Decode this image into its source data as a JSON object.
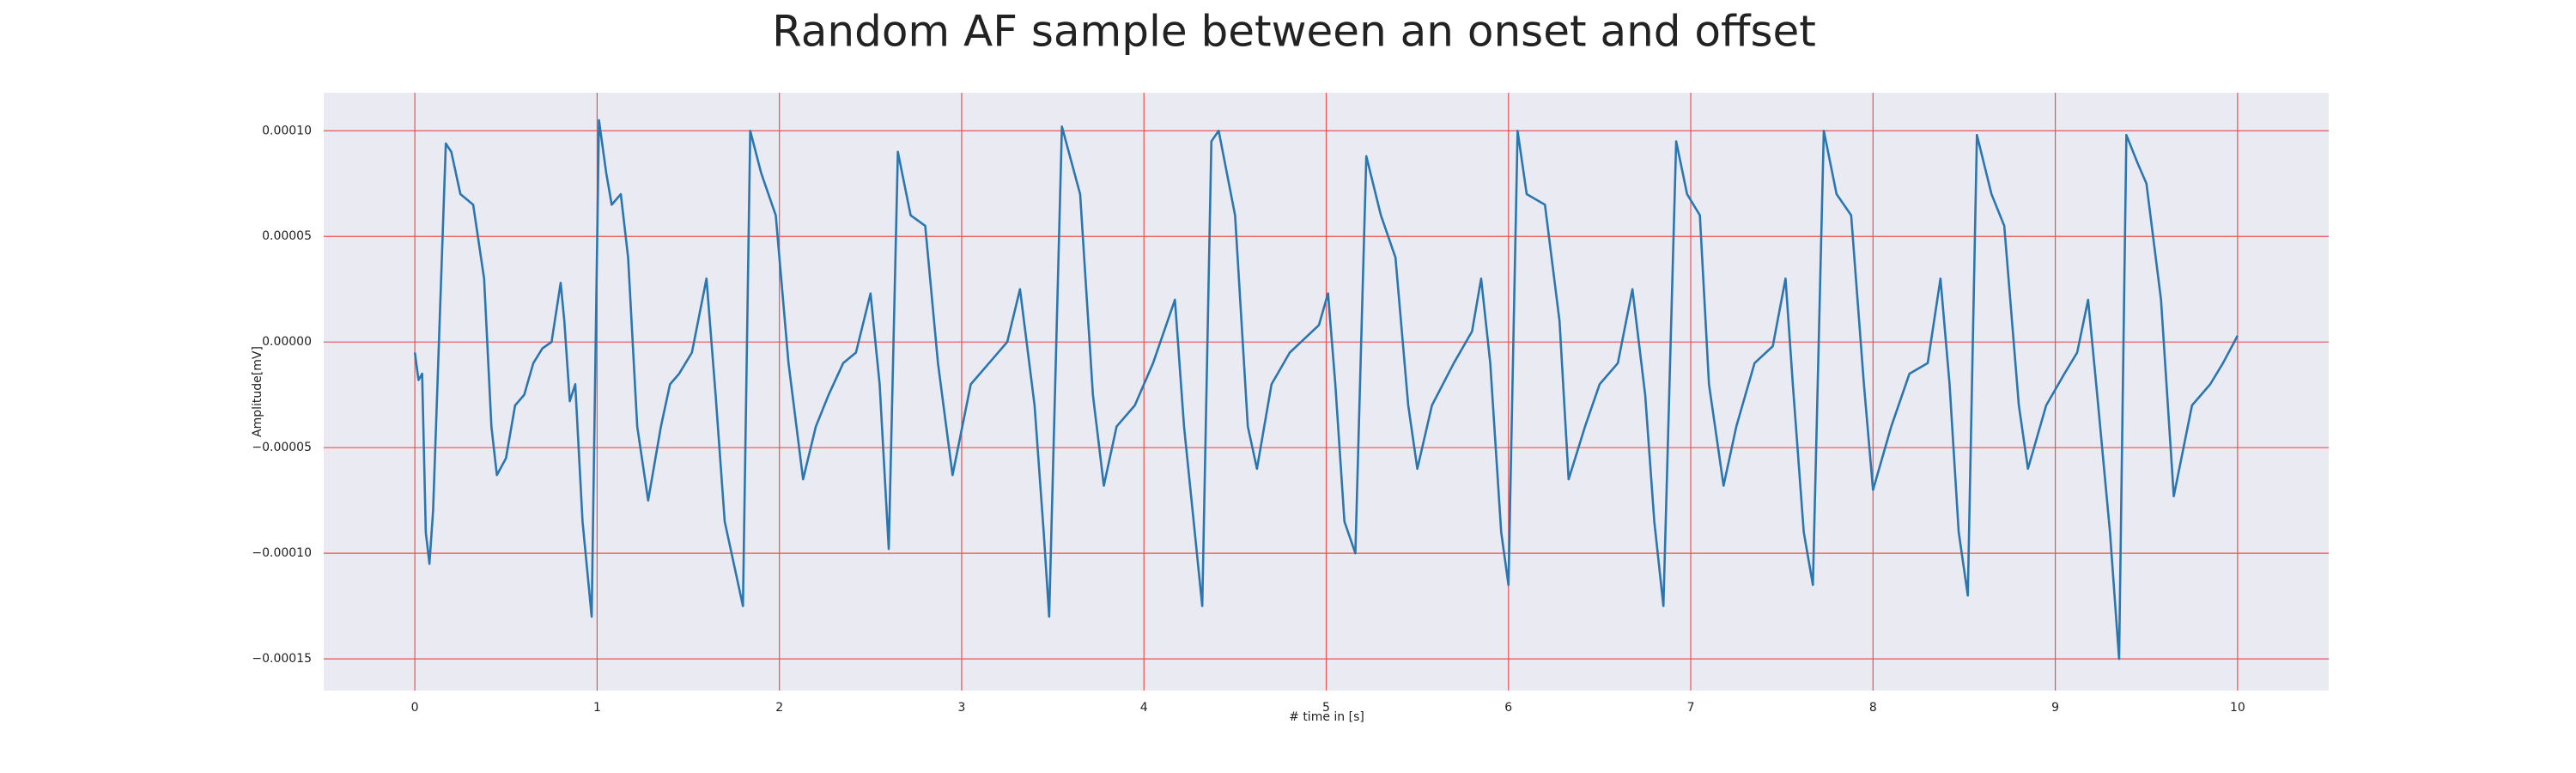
{
  "chart_data": {
    "type": "line",
    "title": "Random AF sample between an onset and offset",
    "xlabel": "# time in [s]",
    "ylabel": "Amplitude[mV]",
    "xlim": [
      -0.5,
      10.5
    ],
    "ylim": [
      -0.000165,
      0.000118
    ],
    "xticks": [
      0,
      1,
      2,
      3,
      4,
      5,
      6,
      7,
      8,
      9,
      10
    ],
    "yticks": [
      {
        "value": -0.00015,
        "label": "−0.00015"
      },
      {
        "value": -0.0001,
        "label": "−0.00010"
      },
      {
        "value": -5e-05,
        "label": "−0.00005"
      },
      {
        "value": 0,
        "label": "0.00000"
      },
      {
        "value": 5e-05,
        "label": "0.00005"
      },
      {
        "value": 0.0001,
        "label": "0.00010"
      }
    ],
    "grid": true,
    "grid_color": "#f05050",
    "background": "#eaeaf2",
    "x": [
      0,
      0.02,
      0.04,
      0.06,
      0.08,
      0.1,
      0.17,
      0.2,
      0.25,
      0.32,
      0.38,
      0.42,
      0.45,
      0.5,
      0.55,
      0.6,
      0.65,
      0.7,
      0.75,
      0.8,
      0.82,
      0.85,
      0.88,
      0.92,
      0.97,
      1.01,
      1.05,
      1.08,
      1.13,
      1.17,
      1.22,
      1.28,
      1.35,
      1.4,
      1.45,
      1.52,
      1.6,
      1.65,
      1.7,
      1.8,
      1.84,
      1.9,
      1.98,
      2.05,
      2.13,
      2.2,
      2.27,
      2.35,
      2.42,
      2.5,
      2.55,
      2.6,
      2.65,
      2.72,
      2.8,
      2.87,
      2.95,
      3.05,
      3.15,
      3.25,
      3.32,
      3.4,
      3.45,
      3.48,
      3.55,
      3.65,
      3.72,
      3.78,
      3.85,
      3.95,
      4.05,
      4.17,
      4.22,
      4.32,
      4.37,
      4.41,
      4.5,
      4.57,
      4.62,
      4.7,
      4.8,
      4.96,
      5.01,
      5.05,
      5.1,
      5.16,
      5.22,
      5.3,
      5.38,
      5.45,
      5.5,
      5.58,
      5.7,
      5.8,
      5.85,
      5.9,
      5.96,
      6.0,
      6.05,
      6.1,
      6.2,
      6.28,
      6.33,
      6.42,
      6.5,
      6.6,
      6.68,
      6.75,
      6.8,
      6.85,
      6.92,
      6.98,
      7.05,
      7.1,
      7.18,
      7.25,
      7.35,
      7.45,
      7.52,
      7.56,
      7.62,
      7.67,
      7.73,
      7.8,
      7.88,
      7.95,
      8.0,
      8.1,
      8.2,
      8.3,
      8.37,
      8.42,
      8.47,
      8.52,
      8.57,
      8.65,
      8.72,
      8.8,
      8.85,
      8.95,
      9.05,
      9.12,
      9.18,
      9.23,
      9.3,
      9.35,
      9.39,
      9.45,
      9.5,
      9.58,
      9.65,
      9.75,
      9.85,
      9.92,
      10.0
    ],
    "series": [
      {
        "color": "#2a76b0",
        "values": [
          -5e-06,
          -1.8e-05,
          -1.5e-05,
          -9e-05,
          -0.000105,
          -8e-05,
          9.4e-05,
          9e-05,
          7e-05,
          6.5e-05,
          3e-05,
          -4e-05,
          -6.3e-05,
          -5.5e-05,
          -3e-05,
          -2.5e-05,
          -1e-05,
          -3e-06,
          0,
          2.8e-05,
          1e-05,
          -2.8e-05,
          -2e-05,
          -8.5e-05,
          -0.00013,
          0.000105,
          8e-05,
          6.5e-05,
          7e-05,
          4e-05,
          -4e-05,
          -7.5e-05,
          -4e-05,
          -2e-05,
          -1.5e-05,
          -5e-06,
          3e-05,
          -2.5e-05,
          -8.5e-05,
          -0.000125,
          0.0001,
          8e-05,
          6e-05,
          -1e-05,
          -6.5e-05,
          -4e-05,
          -2.5e-05,
          -1e-05,
          -5e-06,
          2.3e-05,
          -2e-05,
          -9.8e-05,
          9e-05,
          6e-05,
          5.5e-05,
          -1e-05,
          -6.3e-05,
          -2e-05,
          -1e-05,
          0,
          2.5e-05,
          -3e-05,
          -9e-05,
          -0.00013,
          0.000102,
          7e-05,
          -2.5e-05,
          -6.8e-05,
          -4e-05,
          -3e-05,
          -1e-05,
          2e-05,
          -4e-05,
          -0.000125,
          9.5e-05,
          0.0001,
          6e-05,
          -4e-05,
          -6e-05,
          -2e-05,
          -5e-06,
          8e-06,
          2.3e-05,
          -2e-05,
          -8.5e-05,
          -0.0001,
          8.8e-05,
          6e-05,
          4e-05,
          -3e-05,
          -6e-05,
          -3e-05,
          -1e-05,
          5e-06,
          3e-05,
          -1e-05,
          -9e-05,
          -0.000115,
          0.0001,
          7e-05,
          6.5e-05,
          1e-05,
          -6.5e-05,
          -4e-05,
          -2e-05,
          -1e-05,
          2.5e-05,
          -2.5e-05,
          -8.5e-05,
          -0.000125,
          9.5e-05,
          7e-05,
          6e-05,
          -2e-05,
          -6.8e-05,
          -4e-05,
          -1e-05,
          -2e-06,
          3e-05,
          -2e-05,
          -9e-05,
          -0.000115,
          0.0001,
          7e-05,
          6e-05,
          -2e-05,
          -7e-05,
          -4e-05,
          -1.5e-05,
          -1e-05,
          3e-05,
          -2e-05,
          -9e-05,
          -0.00012,
          9.8e-05,
          7e-05,
          5.5e-05,
          -3e-05,
          -6e-05,
          -3e-05,
          -1.5e-05,
          -5e-06,
          2e-05,
          -2.5e-05,
          -9e-05,
          -0.00015,
          9.8e-05,
          8.5e-05,
          7.5e-05,
          2e-05,
          -7.3e-05,
          -3e-05,
          -2e-05,
          -1e-05,
          3e-06
        ]
      }
    ]
  }
}
